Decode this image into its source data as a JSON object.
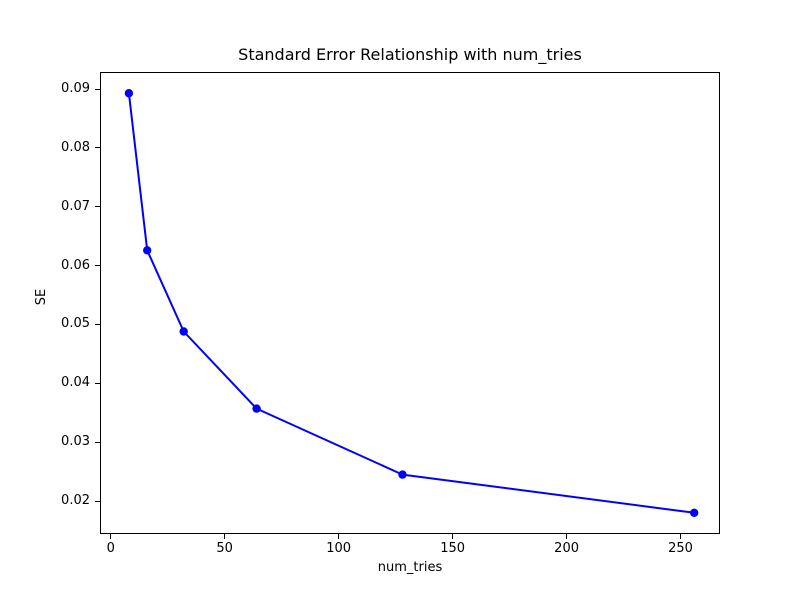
{
  "figure": {
    "background_color": "#ffffff",
    "spine_color": "#000000",
    "text_color": "#000000"
  },
  "chart_data": {
    "type": "line",
    "title": "Standard Error Relationship with num_tries",
    "xlabel": "num_tries",
    "ylabel": "SE",
    "x": [
      8,
      16,
      32,
      64,
      128,
      256
    ],
    "y": [
      0.0893,
      0.0626,
      0.0488,
      0.0357,
      0.0245,
      0.018
    ],
    "series": [
      {
        "name": "SE",
        "x": [
          8,
          16,
          32,
          64,
          128,
          256
        ],
        "values": [
          0.0893,
          0.0626,
          0.0488,
          0.0357,
          0.0245,
          0.018
        ]
      }
    ],
    "x_ticks": [
      0,
      50,
      100,
      150,
      200,
      250
    ],
    "y_ticks": [
      0.02,
      0.03,
      0.04,
      0.05,
      0.06,
      0.07,
      0.08,
      0.09
    ],
    "xlim": [
      -4.7,
      267.3
    ],
    "ylim": [
      0.0144,
      0.0929
    ],
    "line_color": "#0000ff",
    "marker": "circle",
    "marker_color": "#0000ff",
    "grid": false,
    "legend": null
  }
}
